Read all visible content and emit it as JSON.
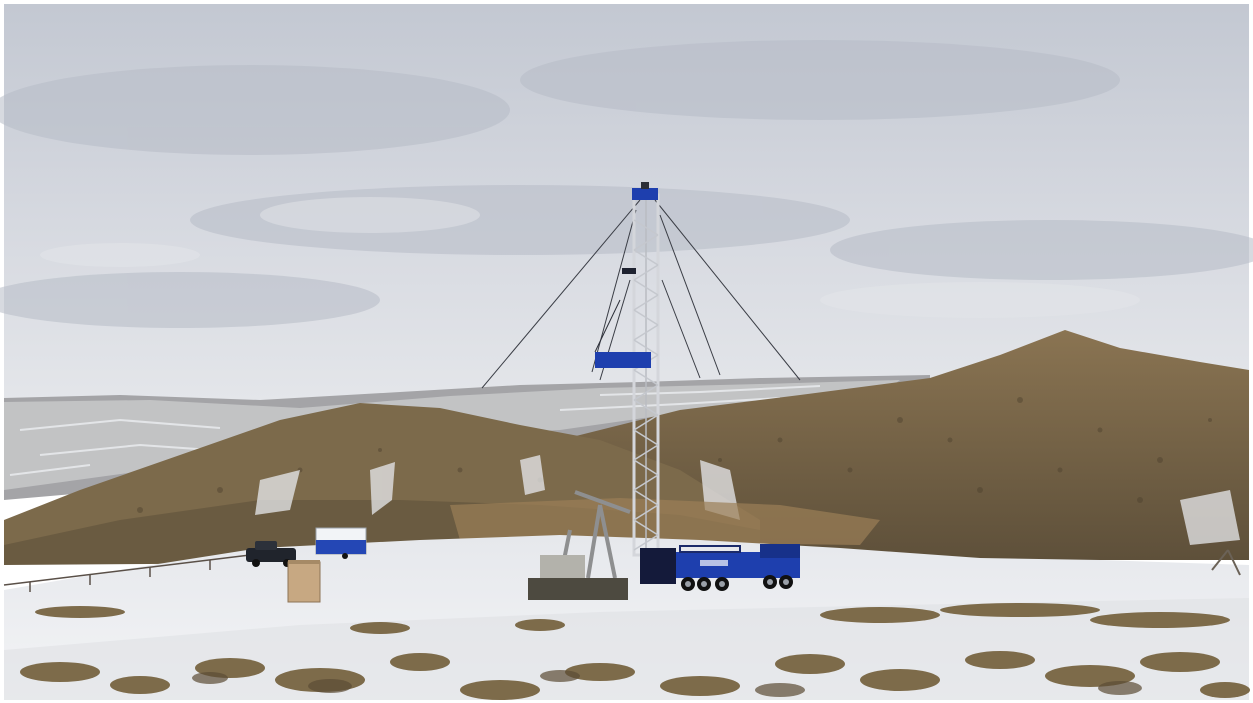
{
  "scene": {
    "subject": "well-servicing-rig",
    "colors": {
      "sky_top": "#c9cdd6",
      "sky_bottom": "#dfe2e8",
      "snow": "#eef0f3",
      "hill_brown": "#7d6a49",
      "hill_dark": "#5b4d35",
      "far_ridge": "#a9a9ab",
      "rig_blue": "#1e3fae",
      "mast": "#c9ccd1",
      "brush": "#7a6a4a"
    }
  }
}
